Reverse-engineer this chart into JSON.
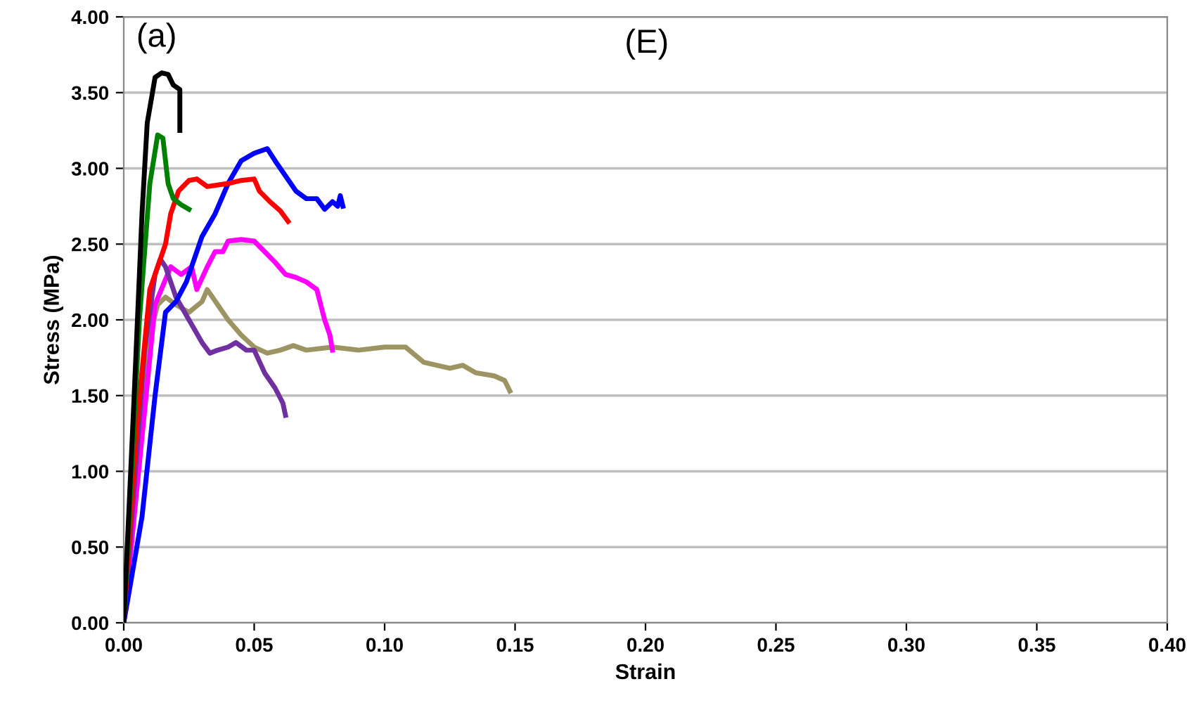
{
  "chart_data": {
    "type": "line",
    "xlabel": "Strain",
    "ylabel": "Stress (MPa)",
    "annotations": [
      "(a)",
      "(E)"
    ],
    "xlim": [
      0,
      0.4
    ],
    "ylim": [
      0,
      4
    ],
    "xticks": [
      {
        "value": 0,
        "label": "0.00"
      },
      {
        "value": 0.05,
        "label": "0.05"
      },
      {
        "value": 0.1,
        "label": "0.10"
      },
      {
        "value": 0.15,
        "label": "0.15"
      },
      {
        "value": 0.2,
        "label": "0.20"
      },
      {
        "value": 0.25,
        "label": "0.25"
      },
      {
        "value": 0.3,
        "label": "0.30"
      },
      {
        "value": 0.35,
        "label": "0.35"
      },
      {
        "value": 0.4,
        "label": "0.40"
      }
    ],
    "yticks": [
      {
        "value": 0,
        "label": "0.00"
      },
      {
        "value": 0.5,
        "label": "0.50"
      },
      {
        "value": 1,
        "label": "1.00"
      },
      {
        "value": 1.5,
        "label": "1.50"
      },
      {
        "value": 2,
        "label": "2.00"
      },
      {
        "value": 2.5,
        "label": "2.50"
      },
      {
        "value": 3,
        "label": "3.00"
      },
      {
        "value": 3.5,
        "label": "3.50"
      },
      {
        "value": 4,
        "label": "4.00"
      }
    ],
    "grid": "y",
    "marker": "none",
    "line_style": "solid",
    "series": [
      {
        "color": "#9c9462",
        "x": [
          0,
          0.01,
          0.013,
          0.016,
          0.02,
          0.025,
          0.03,
          0.032,
          0.036,
          0.04,
          0.045,
          0.05,
          0.055,
          0.06,
          0.065,
          0.07,
          0.08,
          0.09,
          0.1,
          0.108,
          0.115,
          0.125,
          0.13,
          0.135,
          0.142,
          0.146,
          0.148
        ],
        "values": [
          0,
          1.9,
          2.1,
          2.15,
          2.1,
          2.05,
          2.12,
          2.2,
          2.1,
          2.0,
          1.9,
          1.82,
          1.78,
          1.8,
          1.83,
          1.8,
          1.82,
          1.8,
          1.82,
          1.82,
          1.72,
          1.68,
          1.7,
          1.65,
          1.63,
          1.6,
          1.53
        ]
      },
      {
        "color": "#ff00ff",
        "x": [
          0,
          0.012,
          0.018,
          0.022,
          0.026,
          0.028,
          0.032,
          0.035,
          0.038,
          0.04,
          0.045,
          0.05,
          0.054,
          0.058,
          0.062,
          0.066,
          0.07,
          0.074,
          0.077,
          0.079,
          0.08
        ],
        "values": [
          0,
          2.1,
          2.35,
          2.3,
          2.35,
          2.2,
          2.35,
          2.45,
          2.45,
          2.52,
          2.53,
          2.52,
          2.45,
          2.38,
          2.3,
          2.28,
          2.25,
          2.2,
          2.0,
          1.9,
          1.8
        ]
      },
      {
        "color": "#7030a0",
        "x": [
          0,
          0.008,
          0.012,
          0.014,
          0.016,
          0.02,
          0.025,
          0.03,
          0.033,
          0.036,
          0.04,
          0.043,
          0.047,
          0.05,
          0.054,
          0.058,
          0.061,
          0.062
        ],
        "values": [
          0,
          1.8,
          2.3,
          2.4,
          2.35,
          2.15,
          2.0,
          1.85,
          1.78,
          1.8,
          1.82,
          1.85,
          1.8,
          1.8,
          1.65,
          1.55,
          1.45,
          1.37
        ]
      },
      {
        "color": "#0000ff",
        "x": [
          0,
          0.007,
          0.012,
          0.016,
          0.02,
          0.024,
          0.03,
          0.035,
          0.04,
          0.045,
          0.05,
          0.055,
          0.058,
          0.062,
          0.066,
          0.07,
          0.074,
          0.077,
          0.08,
          0.082,
          0.083,
          0.084
        ],
        "values": [
          0,
          0.7,
          1.5,
          2.05,
          2.12,
          2.25,
          2.55,
          2.7,
          2.9,
          3.05,
          3.1,
          3.13,
          3.05,
          2.95,
          2.85,
          2.8,
          2.8,
          2.73,
          2.78,
          2.75,
          2.82,
          2.75
        ]
      },
      {
        "color": "#ff0000",
        "x": [
          0,
          0.005,
          0.01,
          0.013,
          0.016,
          0.018,
          0.021,
          0.025,
          0.028,
          0.032,
          0.04,
          0.045,
          0.05,
          0.052,
          0.056,
          0.06,
          0.063
        ],
        "values": [
          0,
          1.3,
          2.2,
          2.35,
          2.5,
          2.7,
          2.85,
          2.92,
          2.93,
          2.88,
          2.9,
          2.92,
          2.93,
          2.85,
          2.78,
          2.72,
          2.65
        ]
      },
      {
        "color": "#008000",
        "x": [
          0,
          0.006,
          0.01,
          0.013,
          0.015,
          0.017,
          0.019,
          0.022,
          0.025
        ],
        "values": [
          0,
          2.0,
          2.9,
          3.22,
          3.2,
          2.9,
          2.8,
          2.76,
          2.73
        ]
      },
      {
        "color": "#000000",
        "x": [
          0,
          0.004,
          0.007,
          0.009,
          0.01,
          0.012,
          0.0145,
          0.017,
          0.019,
          0.0215,
          0.0215
        ],
        "values": [
          0,
          1.5,
          2.7,
          3.3,
          3.4,
          3.6,
          3.63,
          3.62,
          3.55,
          3.52,
          3.25
        ]
      }
    ]
  }
}
